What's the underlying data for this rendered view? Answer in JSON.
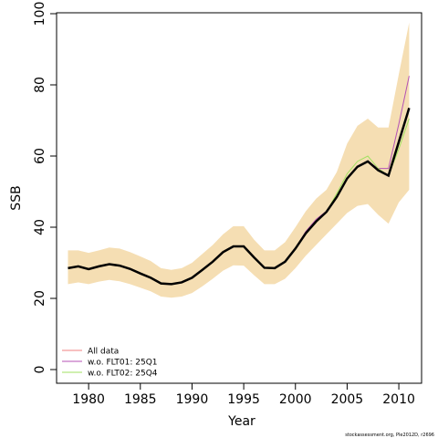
{
  "chart_data": {
    "type": "line",
    "x_label": "Year",
    "y_label": "SSB",
    "footnote": "stockassessment.org, Ple2012D, r2696",
    "x": [
      1978,
      1979,
      1980,
      1981,
      1982,
      1983,
      1984,
      1985,
      1986,
      1987,
      1988,
      1989,
      1990,
      1991,
      1992,
      1993,
      1994,
      1995,
      1996,
      1997,
      1998,
      1999,
      2000,
      2001,
      2002,
      2003,
      2004,
      2005,
      2006,
      2007,
      2008,
      2009,
      2010,
      2011
    ],
    "band": {
      "color": "#f5deb3",
      "upper": [
        33.5,
        33.5,
        32.8,
        33.5,
        34.3,
        34,
        33,
        31.8,
        30.5,
        28.5,
        28,
        28.5,
        30,
        32.5,
        35,
        38,
        40.3,
        40.3,
        36.5,
        33.5,
        33.5,
        35.8,
        40,
        44.5,
        48,
        50.5,
        55.5,
        63.5,
        68.5,
        70.5,
        68,
        68,
        83,
        97.5
      ],
      "lower": [
        24,
        24.5,
        24,
        24.7,
        25.2,
        24.8,
        24,
        23,
        22,
        20.5,
        20.2,
        20.5,
        21.5,
        23.4,
        25.5,
        27.8,
        29.3,
        29.2,
        26.5,
        24,
        24,
        25.5,
        28.5,
        32,
        35,
        38,
        41,
        44,
        46,
        46.5,
        43.5,
        41,
        47,
        50.5
      ]
    },
    "series": [
      {
        "name": "w.o. FLT01: 25Q1",
        "color": "#b452b4",
        "values": [
          28.5,
          29,
          28.2,
          29,
          29.6,
          29.2,
          28.3,
          27,
          25.8,
          24.2,
          24,
          24.5,
          25.8,
          28,
          30.3,
          33,
          34.6,
          34.6,
          31.5,
          28.6,
          28.5,
          30.3,
          34,
          38.8,
          42.2,
          44.5,
          48.5,
          53.5,
          57,
          58.5,
          56.5,
          56.5,
          69,
          82.5
        ]
      },
      {
        "name": "w.o. FLT02: 25Q4",
        "color": "#a0e060",
        "values": [
          28.5,
          29,
          28.2,
          29,
          29.6,
          29.2,
          28.3,
          27,
          25.8,
          24.2,
          24,
          24.5,
          25.8,
          28,
          30.3,
          33,
          34.6,
          34.6,
          31.5,
          28.6,
          28.5,
          30.3,
          34,
          38,
          41.4,
          44.3,
          49.5,
          55,
          58.5,
          60,
          56.5,
          54.5,
          62,
          70.5
        ]
      },
      {
        "name": "All data",
        "color": "#f08080",
        "line_color": "#000000",
        "line_width": 2.5,
        "values": [
          28.5,
          29,
          28.2,
          29,
          29.6,
          29.2,
          28.3,
          27,
          25.8,
          24.2,
          24,
          24.5,
          25.8,
          28,
          30.3,
          33,
          34.6,
          34.6,
          31.5,
          28.6,
          28.5,
          30.3,
          34,
          38.3,
          41.6,
          44.3,
          48.5,
          53.7,
          57,
          58.5,
          56,
          54.5,
          64,
          73.5
        ]
      }
    ],
    "legend_order": [
      2,
      0,
      1
    ],
    "xlim": [
      1976.9,
      2012.2
    ],
    "ylim": [
      -3.85,
      100.26
    ],
    "xticks": [
      1980,
      1985,
      1990,
      1995,
      2000,
      2005,
      2010
    ],
    "yticks": [
      0,
      20,
      40,
      60,
      80,
      100
    ]
  }
}
